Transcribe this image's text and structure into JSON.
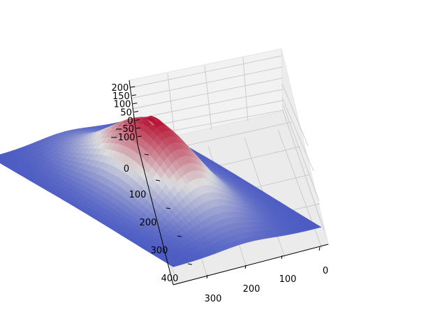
{
  "chart_data": {
    "type": "surface",
    "title": "",
    "colormap": "coolwarm",
    "colormap_endpoints": {
      "low": "#3b4cc0",
      "mid": "#dddddd",
      "high": "#b40426"
    },
    "grid": true,
    "x_axis": {
      "label": "",
      "ticks": [
        "0",
        "100",
        "200",
        "300"
      ],
      "range": [
        0,
        380
      ]
    },
    "y_axis": {
      "label": "",
      "ticks": [
        "0",
        "100",
        "200",
        "300",
        "400"
      ],
      "range": [
        -20,
        410
      ]
    },
    "z_axis": {
      "label": "",
      "ticks": [
        "−100",
        "−50",
        "0",
        "50",
        "100",
        "150",
        "200"
      ],
      "range": [
        -120,
        200
      ]
    },
    "surface": {
      "description_shape": "face-like height field",
      "z_min": -120,
      "z_max": 200,
      "peak_location": {
        "x": 190,
        "y": 190,
        "z": 195
      }
    }
  }
}
